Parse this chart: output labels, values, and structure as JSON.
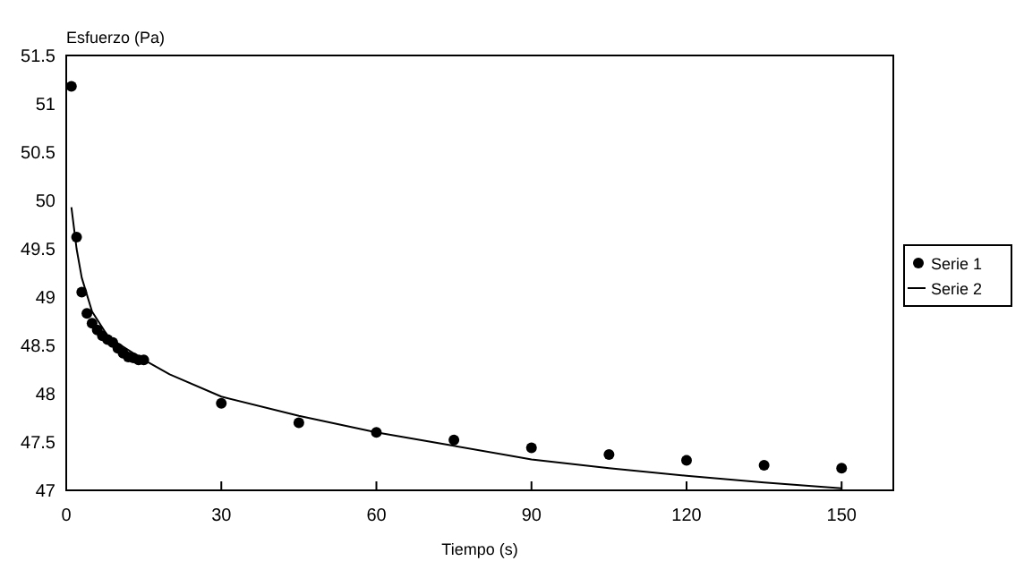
{
  "chart_data": {
    "type": "scatter",
    "ylabel": "Esfuerzo (Pa)",
    "xlabel": "Tiempo (s)",
    "xlim": [
      0,
      160
    ],
    "xticks": [
      0,
      30,
      60,
      90,
      120,
      150
    ],
    "ylim": [
      47,
      51.5
    ],
    "yticks": [
      47,
      47.5,
      48,
      48.5,
      49,
      49.5,
      50,
      50.5,
      51,
      51.5
    ],
    "grid": false,
    "legend": "right",
    "series": [
      {
        "name": "Serie 1",
        "marker": "circle",
        "color": "#000000",
        "x": [
          1,
          2,
          3,
          4,
          5,
          6,
          7,
          8,
          9,
          10,
          11,
          12,
          13,
          14,
          15,
          30,
          45,
          60,
          75,
          90,
          105,
          120,
          135,
          150
        ],
        "values": [
          51.18,
          49.62,
          49.05,
          48.83,
          48.73,
          48.66,
          48.6,
          48.56,
          48.53,
          48.47,
          48.42,
          48.38,
          48.37,
          48.35,
          48.35,
          47.9,
          47.7,
          47.6,
          47.52,
          47.44,
          47.37,
          47.31,
          47.26,
          47.23
        ]
      },
      {
        "name": "Serie 2",
        "type": "line",
        "marker": "none",
        "line_style": "solid",
        "color": "#000000",
        "x": [
          1,
          2,
          3,
          5,
          8,
          10,
          15,
          20,
          30,
          45,
          60,
          75,
          90,
          105,
          120,
          135,
          150
        ],
        "values": [
          49.93,
          49.5,
          49.2,
          48.85,
          48.6,
          48.52,
          48.35,
          48.2,
          47.97,
          47.77,
          47.6,
          47.46,
          47.32,
          47.23,
          47.15,
          47.08,
          47.02
        ]
      }
    ]
  }
}
